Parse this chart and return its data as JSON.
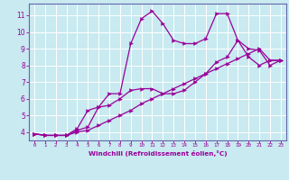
{
  "xlabel": "Windchill (Refroidissement éolien,°C)",
  "bg_color": "#c8eaf0",
  "line_color": "#990099",
  "grid_color": "#ffffff",
  "spine_color": "#6666aa",
  "xlim": [
    -0.5,
    23.5
  ],
  "ylim": [
    3.5,
    11.7
  ],
  "xticks": [
    0,
    1,
    2,
    3,
    4,
    5,
    6,
    7,
    8,
    9,
    10,
    11,
    12,
    13,
    14,
    15,
    16,
    17,
    18,
    19,
    20,
    21,
    22,
    23
  ],
  "yticks": [
    4,
    5,
    6,
    7,
    8,
    9,
    10,
    11
  ],
  "line1_x": [
    0,
    1,
    2,
    3,
    4,
    5,
    6,
    7,
    8,
    9,
    10,
    11,
    12,
    13,
    14,
    15,
    16,
    17,
    18,
    19,
    20,
    21,
    22,
    23
  ],
  "line1_y": [
    3.9,
    3.8,
    3.8,
    3.8,
    4.2,
    5.3,
    5.5,
    6.3,
    6.3,
    9.3,
    10.8,
    11.25,
    10.5,
    9.5,
    9.3,
    9.3,
    9.6,
    11.1,
    11.1,
    9.5,
    9.0,
    8.9,
    8.0,
    8.3
  ],
  "line2_x": [
    0,
    1,
    2,
    3,
    4,
    5,
    6,
    7,
    8,
    9,
    10,
    11,
    12,
    13,
    14,
    15,
    16,
    17,
    18,
    19,
    20,
    21,
    22,
    23
  ],
  "line2_y": [
    3.9,
    3.8,
    3.8,
    3.8,
    4.1,
    4.3,
    5.5,
    5.6,
    6.0,
    6.5,
    6.6,
    6.6,
    6.3,
    6.3,
    6.5,
    7.0,
    7.5,
    8.2,
    8.5,
    9.5,
    8.5,
    8.0,
    8.3,
    8.3
  ],
  "line3_x": [
    0,
    1,
    2,
    3,
    4,
    5,
    6,
    7,
    8,
    9,
    10,
    11,
    12,
    13,
    14,
    15,
    16,
    17,
    18,
    19,
    20,
    21,
    22,
    23
  ],
  "line3_y": [
    3.9,
    3.8,
    3.8,
    3.8,
    4.0,
    4.1,
    4.4,
    4.7,
    5.0,
    5.3,
    5.7,
    6.0,
    6.3,
    6.6,
    6.9,
    7.2,
    7.5,
    7.8,
    8.1,
    8.4,
    8.7,
    9.0,
    8.3,
    8.3
  ]
}
